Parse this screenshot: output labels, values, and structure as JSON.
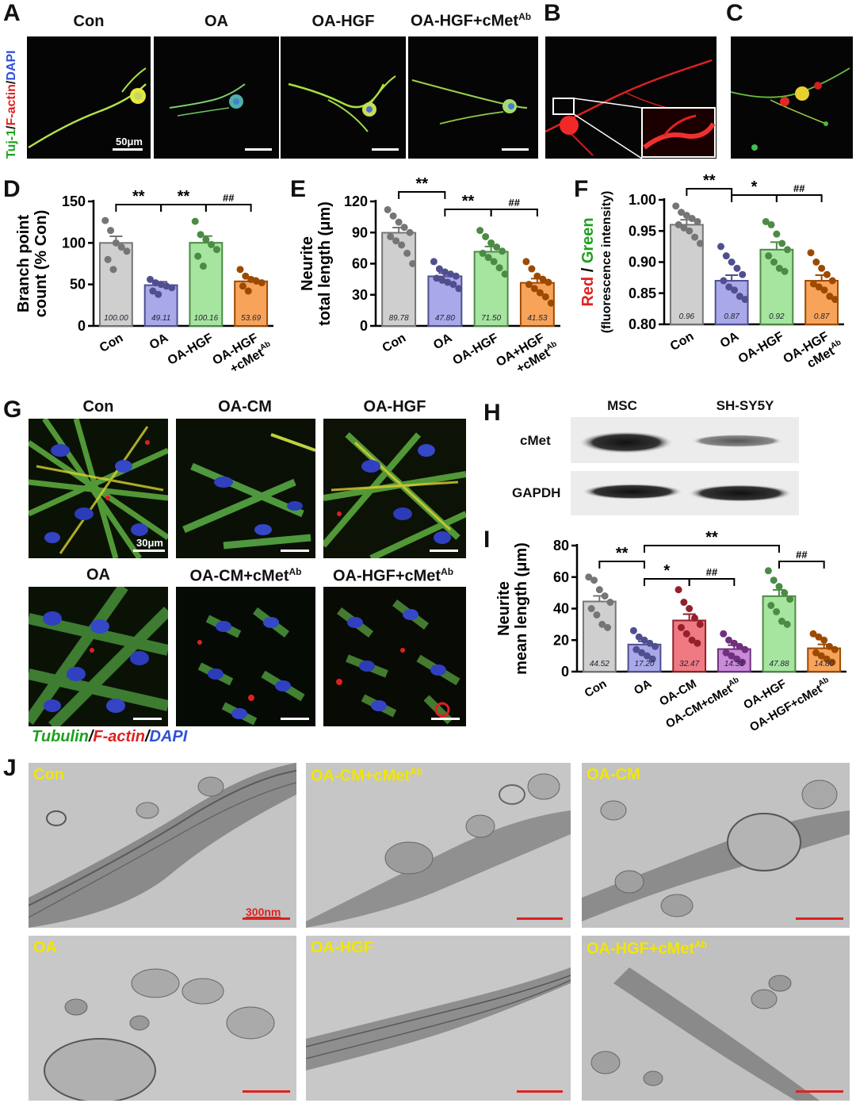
{
  "panelA": {
    "letter": "A",
    "side_label": {
      "green": "Tuj-1",
      "sep1": "/",
      "red": "F-actin",
      "sep2": "/",
      "blue": "DAPI"
    },
    "titles": [
      "Con",
      "OA",
      "OA-HGF",
      "OA-HGF+cMet"
    ],
    "title_sup": "Ab",
    "scale_text": "50μm"
  },
  "panelB": {
    "letter": "B"
  },
  "panelC": {
    "letter": "C"
  },
  "panelG": {
    "letter": "G",
    "titles_top": [
      "Con",
      "OA-CM",
      "OA-HGF"
    ],
    "titles_bottom": [
      "OA",
      "OA-CM+cMet",
      "OA-HGF+cMet"
    ],
    "title_sup": "Ab",
    "scale_text": "30μm",
    "legend": {
      "green": "Tubulin",
      "sep1": "/",
      "red": "F-actin",
      "sep2": "/",
      "blue": "DAPI"
    }
  },
  "panelH": {
    "letter": "H",
    "lanes": [
      "MSC",
      "SH-SY5Y"
    ],
    "rows": [
      "cMet",
      "GAPDH"
    ]
  },
  "panelJ": {
    "letter": "J",
    "labels_top": [
      "Con",
      "OA-CM+cMet",
      "OA-CM"
    ],
    "labels_bottom": [
      "OA",
      "OA-HGF",
      "OA-HGF+cMet"
    ],
    "label_sup": "Ab",
    "scale_text": "300nm"
  },
  "colors": {
    "con": "#cfcfcf",
    "oa": "#a9a9ea",
    "oa_cm": "#ef7a84",
    "oa_cm_cmet": "#c98ad8",
    "oa_hgf": "#a6e59f",
    "oa_hgf_cmet": "#f7a45a"
  },
  "chart_data": [
    {
      "panel": "D",
      "type": "bar",
      "categories": [
        "Con",
        "OA",
        "OA-HGF",
        "OA-HGF +cMetAb"
      ],
      "values": [
        100.0,
        49.11,
        100.16,
        53.69
      ],
      "value_labels": [
        "100.00",
        "49.11",
        "100.16",
        "53.69"
      ],
      "errors": [
        8,
        4,
        8,
        4
      ],
      "points": [
        [
          127,
          115,
          100,
          95,
          90,
          80,
          68
        ],
        [
          56,
          52,
          50,
          48,
          46,
          42,
          38
        ],
        [
          126,
          110,
          104,
          98,
          92,
          84,
          72
        ],
        [
          68,
          60,
          56,
          54,
          52,
          48,
          42
        ]
      ],
      "ylabel": "Branch point count (% Con)",
      "ylim": [
        0,
        150
      ],
      "yticks": [
        0,
        50,
        100,
        150
      ],
      "significance": [
        {
          "from": 0,
          "to": 1,
          "label": "**"
        },
        {
          "from": 1,
          "to": 2,
          "label": "**"
        },
        {
          "from": 2,
          "to": 3,
          "label": "##"
        }
      ]
    },
    {
      "panel": "E",
      "type": "bar",
      "categories": [
        "Con",
        "OA",
        "OA-HGF",
        "OA+HGF +cMetAb"
      ],
      "values": [
        89.78,
        47.8,
        71.5,
        41.53
      ],
      "value_labels": [
        "89.78",
        "47.80",
        "71.50",
        "41.53"
      ],
      "errors": [
        5,
        3,
        5,
        4
      ],
      "points": [
        [
          112,
          106,
          100,
          95,
          90,
          86,
          82,
          78,
          70,
          60
        ],
        [
          62,
          55,
          52,
          50,
          48,
          46,
          44,
          42,
          40,
          36
        ],
        [
          92,
          86,
          80,
          76,
          72,
          70,
          66,
          62,
          56,
          50
        ],
        [
          62,
          55,
          48,
          45,
          42,
          40,
          36,
          32,
          28,
          22
        ]
      ],
      "ylabel": "Neurite total length (μm)",
      "ylim": [
        0,
        120
      ],
      "yticks": [
        0,
        30,
        60,
        90,
        120
      ],
      "significance": [
        {
          "from": 0,
          "to": 1,
          "label": "**"
        },
        {
          "from": 1,
          "to": 2,
          "label": "**"
        },
        {
          "from": 2,
          "to": 3,
          "label": "##"
        }
      ]
    },
    {
      "panel": "F",
      "type": "bar",
      "categories": [
        "Con",
        "OA",
        "OA-HGF",
        "OA-HGF cMetAb"
      ],
      "values": [
        0.96,
        0.87,
        0.92,
        0.87
      ],
      "value_labels": [
        "0.96",
        "0.87",
        "0.92",
        "0.87"
      ],
      "errors": [
        0.008,
        0.009,
        0.012,
        0.009
      ],
      "points": [
        [
          0.99,
          0.98,
          0.975,
          0.97,
          0.965,
          0.96,
          0.955,
          0.95,
          0.94,
          0.93
        ],
        [
          0.925,
          0.91,
          0.9,
          0.89,
          0.88,
          0.87,
          0.86,
          0.855,
          0.845,
          0.84
        ],
        [
          0.965,
          0.96,
          0.945,
          0.93,
          0.92,
          0.91,
          0.9,
          0.89,
          0.885
        ],
        [
          0.915,
          0.9,
          0.89,
          0.88,
          0.87,
          0.865,
          0.86,
          0.855,
          0.845,
          0.84
        ]
      ],
      "ylabel_parts": {
        "red": "Red",
        "sep": " / ",
        "green": "Green"
      },
      "ylabel2": "(fluorescence intensity)",
      "ylim": [
        0.8,
        1.0
      ],
      "yticks": [
        0.8,
        0.85,
        0.9,
        0.95,
        1.0
      ],
      "ytick_labels": [
        "0.80",
        "0.85",
        "0.90",
        "0.95",
        "1.00"
      ],
      "significance": [
        {
          "from": 0,
          "to": 1,
          "label": "**"
        },
        {
          "from": 1,
          "to": 2,
          "label": "*"
        },
        {
          "from": 2,
          "to": 3,
          "label": "##"
        }
      ]
    },
    {
      "panel": "I",
      "type": "bar",
      "categories": [
        "Con",
        "OA",
        "OA-CM",
        "OA-CM+cMetAb",
        "OA-HGF",
        "OA-HGF+cMetAb"
      ],
      "values": [
        44.52,
        17.2,
        32.47,
        14.31,
        47.88,
        14.8
      ],
      "value_labels": [
        "44.52",
        "17.20",
        "32.47",
        "14.31",
        "47.88",
        "14.80"
      ],
      "errors": [
        3.5,
        2,
        4,
        2.5,
        4,
        2.5
      ],
      "points": [
        [
          60,
          58,
          52,
          48,
          44,
          40,
          36,
          30,
          28
        ],
        [
          26,
          22,
          20,
          18,
          16,
          14,
          12,
          10,
          8
        ],
        [
          52,
          44,
          40,
          34,
          30,
          28,
          24,
          20,
          18
        ],
        [
          24,
          20,
          18,
          16,
          14,
          12,
          10,
          8,
          6
        ],
        [
          64,
          58,
          54,
          50,
          46,
          42,
          38,
          32,
          30
        ],
        [
          24,
          22,
          20,
          16,
          14,
          12,
          10,
          8,
          6
        ]
      ],
      "ylabel": "Neurite mean length (μm)",
      "ylim": [
        0,
        80
      ],
      "yticks": [
        0,
        20,
        40,
        60,
        80
      ],
      "significance": [
        {
          "from": 0,
          "to": 1,
          "label": "**"
        },
        {
          "from": 1,
          "to": 2,
          "label": "*"
        },
        {
          "from": 2,
          "to": 3,
          "label": "##"
        },
        {
          "from": 1,
          "to": 4,
          "label": "**"
        },
        {
          "from": 4,
          "to": 5,
          "label": "##"
        }
      ]
    }
  ]
}
